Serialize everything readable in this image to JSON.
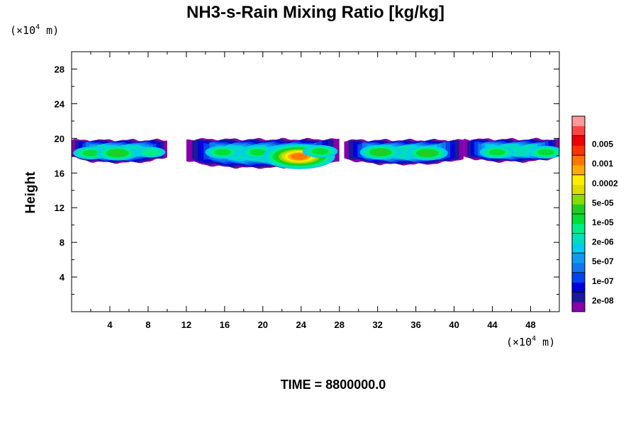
{
  "chart_data": {
    "type": "heatmap",
    "title": "NH3-s-Rain Mixing Ratio [kg/kg]",
    "ylabel": "Height",
    "x_unit": {
      "prefix": "(×10",
      "exp": "4",
      "suffix": " m)"
    },
    "y_unit": {
      "prefix": "(×10",
      "exp": "4",
      "suffix": " m)"
    },
    "xlim": [
      0,
      51
    ],
    "ylim": [
      0,
      30
    ],
    "x_ticks": [
      "4",
      "8",
      "12",
      "16",
      "20",
      "24",
      "28",
      "32",
      "36",
      "40",
      "44",
      "48"
    ],
    "y_ticks": [
      "4",
      "8",
      "12",
      "16",
      "20",
      "24",
      "28"
    ],
    "colorbar": {
      "colors": [
        "#8800aa",
        "#1a1a9a",
        "#0000dd",
        "#0044ee",
        "#1177ee",
        "#1199ee",
        "#00ccee",
        "#00ddbb",
        "#00ee88",
        "#00dd33",
        "#22cc22",
        "#88dd00",
        "#dddd00",
        "#ffee00",
        "#ffaa00",
        "#ff7700",
        "#ff3300",
        "#ee0000",
        "#ff4444",
        "#ff9999"
      ],
      "labels": [
        "2e-08",
        "1e-07",
        "5e-07",
        "2e-06",
        "1e-05",
        "5e-05",
        "0.0002",
        "0.001",
        "0.005"
      ]
    },
    "cloud_bands": [
      {
        "x0": 0,
        "x1": 10,
        "ybot": 17.2,
        "ytop": 19.8,
        "peak": 10
      },
      {
        "x0": 12,
        "x1": 28,
        "ybot": 16.6,
        "ytop": 19.9,
        "peak": 15
      },
      {
        "x0": 28.5,
        "x1": 41,
        "ybot": 17,
        "ytop": 19.8,
        "peak": 10
      },
      {
        "x0": 41,
        "x1": 51,
        "ybot": 17.3,
        "ytop": 19.9,
        "peak": 9
      }
    ],
    "cloud_cores": [
      {
        "x": 2.0,
        "y": 18.3,
        "level": 9
      },
      {
        "x": 4.8,
        "y": 18.3,
        "level": 10
      },
      {
        "x": 8.3,
        "y": 18.4,
        "level": 8
      },
      {
        "x": 15.8,
        "y": 18.4,
        "level": 9
      },
      {
        "x": 19.5,
        "y": 18.4,
        "level": 9
      },
      {
        "x": 23.2,
        "y": 18.1,
        "level": 13
      },
      {
        "x": 23.8,
        "y": 17.9,
        "level": 15
      },
      {
        "x": 26.0,
        "y": 18.5,
        "level": 9
      },
      {
        "x": 32.3,
        "y": 18.4,
        "level": 10
      },
      {
        "x": 37.2,
        "y": 18.3,
        "level": 10
      },
      {
        "x": 44.5,
        "y": 18.4,
        "level": 9
      },
      {
        "x": 49.6,
        "y": 18.4,
        "level": 9
      }
    ]
  },
  "footer": {
    "time_label": "TIME = 8800000.0"
  }
}
